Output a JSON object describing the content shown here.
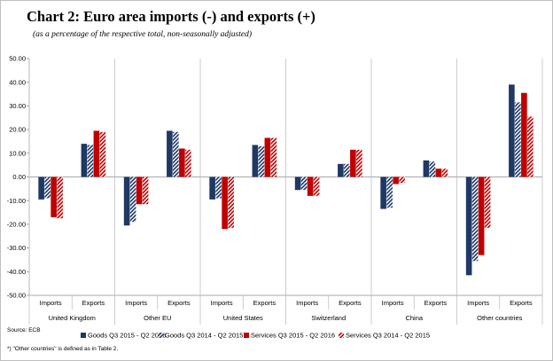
{
  "title": "Chart 2: Euro area imports (-) and exports (+)",
  "subtitle": "(as a percentage of the respective total, non-seasonally adjusted)",
  "source": "Source: ECB",
  "footnote": "*) \"Other countries\" is defined as in Table 2.",
  "colors": {
    "goods": "#1f3864",
    "services": "#c00000"
  },
  "chart_data": {
    "type": "bar",
    "title": "Chart 2: Euro area imports (-) and exports (+)",
    "subtitle": "(as a percentage of the respective total, non-seasonally adjusted)",
    "xlabel": "",
    "ylabel": "",
    "ylim": [
      -50,
      50
    ],
    "yticks": [
      "50.00",
      "40.00",
      "30.00",
      "20.00",
      "10.00",
      "0.00",
      "-10.00",
      "-20.00",
      "-30.00",
      "-40.00",
      "-50.00"
    ],
    "grid": false,
    "legend_position": "bottom",
    "groups": [
      "United Kingdom",
      "Other EU",
      "United States",
      "Switzerland",
      "China",
      "Other countries"
    ],
    "subcategories": [
      "Imports",
      "Exports"
    ],
    "categories": [
      "United Kingdom Imports",
      "United Kingdom Exports",
      "Other EU Imports",
      "Other EU Exports",
      "United States Imports",
      "United States Exports",
      "Switzerland Imports",
      "Switzerland Exports",
      "China Imports",
      "China Exports",
      "Other countries Imports",
      "Other countries Exports"
    ],
    "series": [
      {
        "name": "Goods Q3 2015 - Q2 2016",
        "color": "#1f3864",
        "pattern": "solid",
        "values": [
          -9.5,
          14.0,
          -20.5,
          19.5,
          -9.5,
          13.5,
          -5.5,
          5.5,
          -13.5,
          7.0,
          -41.5,
          39.0
        ]
      },
      {
        "name": "Goods Q3 2014 - Q2 2015",
        "color": "#1f3864",
        "pattern": "hatched",
        "values": [
          -9.0,
          13.5,
          -19.0,
          19.0,
          -9.0,
          13.0,
          -5.5,
          5.5,
          -13.0,
          6.5,
          -35.5,
          31.5
        ]
      },
      {
        "name": "Services Q3 2015 - Q2 2016",
        "color": "#c00000",
        "pattern": "solid",
        "values": [
          -17.0,
          19.5,
          -11.5,
          12.0,
          -22.0,
          16.5,
          -8.0,
          11.5,
          -3.0,
          3.5,
          -33.0,
          35.5
        ]
      },
      {
        "name": "Services Q3 2014 - Q2 2015",
        "color": "#c00000",
        "pattern": "hatched",
        "values": [
          -17.5,
          19.0,
          -11.5,
          11.5,
          -21.5,
          16.5,
          -8.0,
          11.5,
          -2.5,
          3.5,
          -21.5,
          25.5
        ]
      }
    ]
  }
}
